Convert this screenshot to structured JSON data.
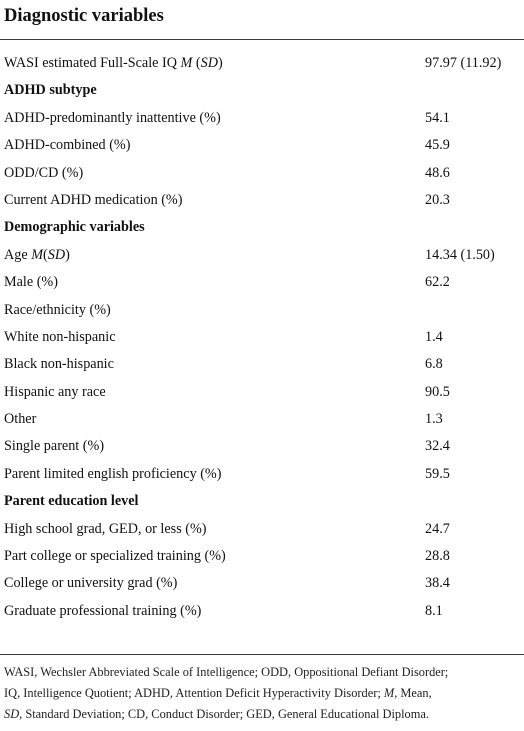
{
  "title": "Diagnostic variables",
  "rows": [
    {
      "label": "WASI estimated Full-Scale IQ ",
      "label_it": "M",
      "label_post": " (",
      "label_it2": "SD",
      "label_post2": ")",
      "value": "97.97 (11.92)"
    },
    {
      "label": "ADHD subtype",
      "value": ""
    },
    {
      "label": "ADHD-predominantly inattentive (%)",
      "value": "54.1"
    },
    {
      "label": "ADHD-combined (%)",
      "value": "45.9"
    },
    {
      "label": "ODD/CD (%)",
      "value": "48.6"
    },
    {
      "label": "Current ADHD medication (%)",
      "value": "20.3"
    },
    {
      "label": "Demographic variables",
      "value": ""
    },
    {
      "label": "Age ",
      "label_it": "M",
      "label_post": "(",
      "label_it2": "SD",
      "label_post2": ")",
      "value": "14.34 (1.50)"
    },
    {
      "label": "Male (%)",
      "value": "62.2"
    },
    {
      "label": "Race/ethnicity (%)",
      "value": ""
    },
    {
      "label": "White non-hispanic",
      "value": "1.4"
    },
    {
      "label": "Black non-hispanic",
      "value": "6.8"
    },
    {
      "label": "Hispanic any race",
      "value": "90.5"
    },
    {
      "label": "Other",
      "value": "1.3"
    },
    {
      "label": "Single parent (%)",
      "value": "32.4"
    },
    {
      "label": "Parent limited english proficiency (%)",
      "value": "59.5"
    },
    {
      "label": "Parent education level",
      "value": ""
    },
    {
      "label": "High school grad, GED, or less (%)",
      "value": "24.7"
    },
    {
      "label": "Part college or specialized training (%)",
      "value": "28.8"
    },
    {
      "label": "College or university grad (%)",
      "value": "38.4"
    },
    {
      "label": "Graduate professional training (%)",
      "value": "8.1"
    }
  ],
  "footnote": {
    "line1": "WASI, Wechsler Abbreviated Scale of Intelligence; ODD, Oppositional Defiant Disorder;",
    "line2_a": "IQ, Intelligence Quotient; ADHD, Attention Deficit Hyperactivity Disorder; ",
    "line2_it": "M",
    "line2_b": ", Mean,",
    "line3_it": "SD",
    "line3_b": ", Standard Deviation; CD, Conduct Disorder; GED, General Educational Diploma."
  }
}
